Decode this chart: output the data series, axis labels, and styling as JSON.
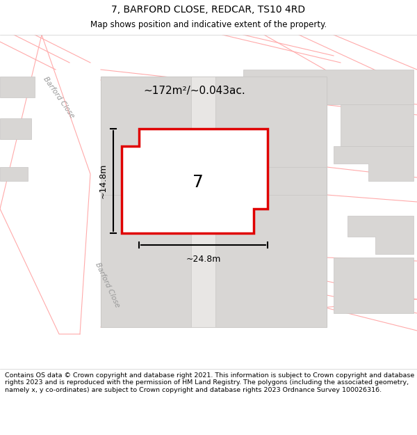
{
  "title": "7, BARFORD CLOSE, REDCAR, TS10 4RD",
  "subtitle": "Map shows position and indicative extent of the property.",
  "footer": "Contains OS data © Crown copyright and database right 2021. This information is subject to Crown copyright and database rights 2023 and is reproduced with the permission of HM Land Registry. The polygons (including the associated geometry, namely x, y co-ordinates) are subject to Crown copyright and database rights 2023 Ordnance Survey 100026316.",
  "area_label": "~172m²/~0.043ac.",
  "width_label": "~24.8m",
  "height_label": "~14.8m",
  "number_label": "7",
  "bg_color": "#f0eeec",
  "map_bg": "#f0eeec",
  "road_fill": "#ffffff",
  "building_fill": "#d8d6d4",
  "building_stroke": "#c8c6c4",
  "red_color": "#e00000",
  "road_line_color": "#ffaaaa",
  "road_outline": "#ccaaaa",
  "title_fontsize": 10,
  "subtitle_fontsize": 8.5,
  "footer_fontsize": 6.8,
  "annotation_fontsize": 11,
  "number_fontsize": 18,
  "figsize": [
    6.0,
    6.25
  ],
  "dpi": 100
}
